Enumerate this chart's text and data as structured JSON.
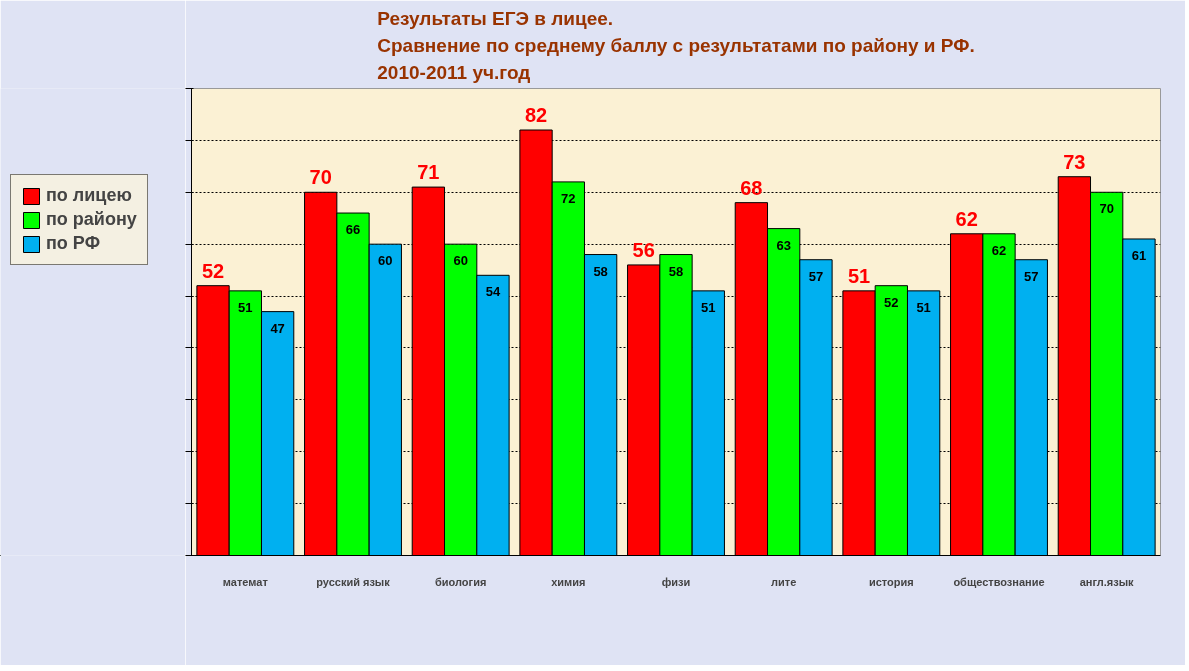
{
  "chart_data": {
    "type": "bar",
    "title": "Результаты ЕГЭ в лицее.\nСравнение по среднему баллу с результатами по району и РФ.\n2010-2011 уч.год",
    "categories": [
      "математ",
      "русский язык",
      "биология",
      "химия",
      "физи",
      "лите",
      "история",
      "обществознание",
      "англ.язык"
    ],
    "series": [
      {
        "name": "по лицею",
        "color": "#ff0000",
        "values": [
          52,
          70,
          71,
          82,
          56,
          68,
          51,
          62,
          73
        ]
      },
      {
        "name": "по району",
        "color": "#00ff00",
        "values": [
          51,
          66,
          60,
          72,
          58,
          63,
          52,
          62,
          70
        ]
      },
      {
        "name": "по РФ",
        "color": "#00b0f0",
        "values": [
          47,
          60,
          54,
          58,
          51,
          57,
          51,
          57,
          61
        ]
      }
    ],
    "ylim": [
      0,
      90
    ],
    "yticks": [
      {
        "value": 0,
        "label": null
      },
      {
        "value": 10,
        "label": null
      },
      {
        "value": 20,
        "label": null
      },
      {
        "value": 30,
        "label": null
      },
      {
        "value": 40,
        "label": null
      },
      {
        "value": 50,
        "label": null
      },
      {
        "value": 60,
        "label": null
      },
      {
        "value": 70,
        "label": null
      },
      {
        "value": 80,
        "label": null
      },
      {
        "value": 90,
        "label": null
      }
    ],
    "tick_labels": "x",
    "grid": "y",
    "legend": "left",
    "data_labels": true
  }
}
